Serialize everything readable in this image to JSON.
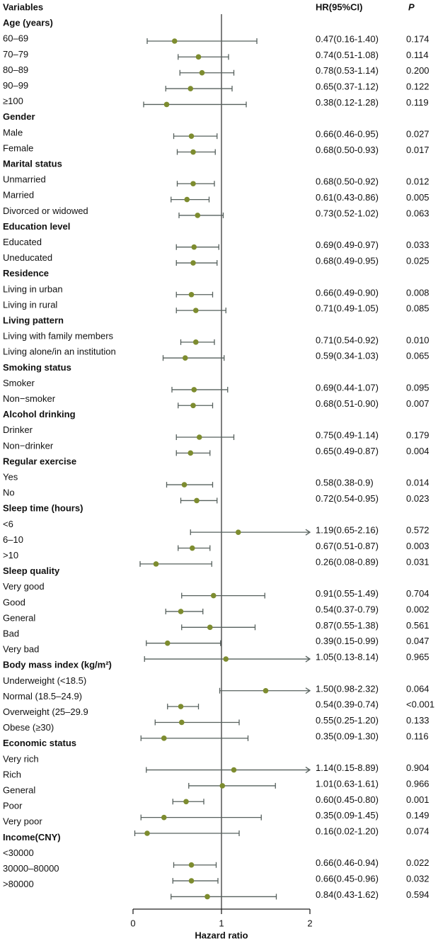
{
  "chart_data": {
    "type": "scatter",
    "title": "",
    "header": {
      "variables": "Variables",
      "hr": "HR(95%CI)",
      "p": "P"
    },
    "xlabel": "Hazard ratio",
    "ylabel": "",
    "xlim": [
      0,
      2
    ],
    "xticks": [
      0,
      1,
      2
    ],
    "reference_line": 1,
    "colors": {
      "point": "#7d8c2f",
      "line": "#56605d",
      "reference": "#3a3a3a"
    },
    "groups": [
      {
        "label": "Age (years)",
        "items": [
          {
            "label": "60–69",
            "hr": 0.47,
            "lower": 0.16,
            "upper": 1.4,
            "ci_text": "0.47(0.16-1.40)",
            "p": "0.174"
          },
          {
            "label": "70–79",
            "hr": 0.74,
            "lower": 0.51,
            "upper": 1.08,
            "ci_text": "0.74(0.51-1.08)",
            "p": "0.114"
          },
          {
            "label": "80–89",
            "hr": 0.78,
            "lower": 0.53,
            "upper": 1.14,
            "ci_text": "0.78(0.53-1.14)",
            "p": "0.200"
          },
          {
            "label": "90–99",
            "hr": 0.65,
            "lower": 0.37,
            "upper": 1.12,
            "ci_text": "0.65(0.37-1.12)",
            "p": "0.122"
          },
          {
            "label": "≥100",
            "hr": 0.38,
            "lower": 0.12,
            "upper": 1.28,
            "ci_text": "0.38(0.12-1.28)",
            "p": "0.119"
          }
        ]
      },
      {
        "label": "Gender",
        "items": [
          {
            "label": "Male",
            "hr": 0.66,
            "lower": 0.46,
            "upper": 0.95,
            "ci_text": "0.66(0.46-0.95)",
            "p": "0.027"
          },
          {
            "label": "Female",
            "hr": 0.68,
            "lower": 0.5,
            "upper": 0.93,
            "ci_text": "0.68(0.50-0.93)",
            "p": "0.017"
          }
        ]
      },
      {
        "label": "Marital status",
        "items": [
          {
            "label": "Unmarried",
            "hr": 0.68,
            "lower": 0.5,
            "upper": 0.92,
            "ci_text": "0.68(0.50-0.92)",
            "p": "0.012"
          },
          {
            "label": "Married",
            "hr": 0.61,
            "lower": 0.43,
            "upper": 0.86,
            "ci_text": "0.61(0.43-0.86)",
            "p": "0.005"
          },
          {
            "label": "Divorced or widowed",
            "hr": 0.73,
            "lower": 0.52,
            "upper": 1.02,
            "ci_text": "0.73(0.52-1.02)",
            "p": "0.063"
          }
        ]
      },
      {
        "label": "Education level",
        "items": [
          {
            "label": "Educated",
            "hr": 0.69,
            "lower": 0.49,
            "upper": 0.97,
            "ci_text": "0.69(0.49-0.97)",
            "p": "0.033"
          },
          {
            "label": "Uneducated",
            "hr": 0.68,
            "lower": 0.49,
            "upper": 0.95,
            "ci_text": "0.68(0.49-0.95)",
            "p": "0.025"
          }
        ]
      },
      {
        "label": "Residence",
        "items": [
          {
            "label": "Living in urban",
            "hr": 0.66,
            "lower": 0.49,
            "upper": 0.9,
            "ci_text": "0.66(0.49-0.90)",
            "p": "0.008"
          },
          {
            "label": "Living in rural",
            "hr": 0.71,
            "lower": 0.49,
            "upper": 1.05,
            "ci_text": "0.71(0.49-1.05)",
            "p": "0.085"
          }
        ]
      },
      {
        "label": "Living pattern",
        "items": [
          {
            "label": "Living with family members",
            "hr": 0.71,
            "lower": 0.54,
            "upper": 0.92,
            "ci_text": "0.71(0.54-0.92)",
            "p": "0.010"
          },
          {
            "label": "Living alone/in an institution",
            "hr": 0.59,
            "lower": 0.34,
            "upper": 1.03,
            "ci_text": "0.59(0.34-1.03)",
            "p": "0.065"
          }
        ]
      },
      {
        "label": "Smoking status",
        "items": [
          {
            "label": "Smoker",
            "hr": 0.69,
            "lower": 0.44,
            "upper": 1.07,
            "ci_text": "0.69(0.44-1.07)",
            "p": "0.095"
          },
          {
            "label": "Non−smoker",
            "hr": 0.68,
            "lower": 0.51,
            "upper": 0.9,
            "ci_text": "0.68(0.51-0.90)",
            "p": "0.007"
          }
        ]
      },
      {
        "label": "Alcohol drinking",
        "items": [
          {
            "label": "Drinker",
            "hr": 0.75,
            "lower": 0.49,
            "upper": 1.14,
            "ci_text": "0.75(0.49-1.14)",
            "p": "0.179"
          },
          {
            "label": "Non−drinker",
            "hr": 0.65,
            "lower": 0.49,
            "upper": 0.87,
            "ci_text": "0.65(0.49-0.87)",
            "p": "0.004"
          }
        ]
      },
      {
        "label": "Regular exercise",
        "items": [
          {
            "label": "Yes",
            "hr": 0.58,
            "lower": 0.38,
            "upper": 0.9,
            "ci_text": "0.58(0.38-0.9)",
            "p": "0.014"
          },
          {
            "label": "No",
            "hr": 0.72,
            "lower": 0.54,
            "upper": 0.95,
            "ci_text": "0.72(0.54-0.95)",
            "p": "0.023"
          }
        ]
      },
      {
        "label": "Sleep time (hours)",
        "items": [
          {
            "label": "<6",
            "hr": 1.19,
            "lower": 0.65,
            "upper": 2.16,
            "ci_text": "1.19(0.65-2.16)",
            "p": "0.572"
          },
          {
            "label": "6–10",
            "hr": 0.67,
            "lower": 0.51,
            "upper": 0.87,
            "ci_text": "0.67(0.51-0.87)",
            "p": "0.003"
          },
          {
            "label": ">10",
            "hr": 0.26,
            "lower": 0.08,
            "upper": 0.89,
            "ci_text": "0.26(0.08-0.89)",
            "p": "0.031"
          }
        ]
      },
      {
        "label": "Sleep quality",
        "items": [
          {
            "label": "Very good",
            "hr": 0.91,
            "lower": 0.55,
            "upper": 1.49,
            "ci_text": "0.91(0.55-1.49)",
            "p": "0.704"
          },
          {
            "label": "Good",
            "hr": 0.54,
            "lower": 0.37,
            "upper": 0.79,
            "ci_text": "0.54(0.37-0.79)",
            "p": "0.002"
          },
          {
            "label": "General",
            "hr": 0.87,
            "lower": 0.55,
            "upper": 1.38,
            "ci_text": "0.87(0.55-1.38)",
            "p": "0.561"
          },
          {
            "label": "Bad",
            "hr": 0.39,
            "lower": 0.15,
            "upper": 0.99,
            "ci_text": "0.39(0.15-0.99)",
            "p": "0.047"
          },
          {
            "label": "Very bad",
            "hr": 1.05,
            "lower": 0.13,
            "upper": 8.14,
            "ci_text": "1.05(0.13-8.14)",
            "p": "0.965"
          }
        ]
      },
      {
        "label": "Body mass index (kg/m²)",
        "items": [
          {
            "label": "Underweight (<18.5)",
            "hr": 1.5,
            "lower": 0.98,
            "upper": 2.32,
            "ci_text": "1.50(0.98-2.32)",
            "p": "0.064"
          },
          {
            "label": "Normal (18.5–24.9)",
            "hr": 0.54,
            "lower": 0.39,
            "upper": 0.74,
            "ci_text": "0.54(0.39-0.74)",
            "p": "<0.001"
          },
          {
            "label": "Overweight (25–29.9",
            "hr": 0.55,
            "lower": 0.25,
            "upper": 1.2,
            "ci_text": "0.55(0.25-1.20)",
            "p": "0.133"
          },
          {
            "label": "Obese (≥30)",
            "hr": 0.35,
            "lower": 0.09,
            "upper": 1.3,
            "ci_text": "0.35(0.09-1.30)",
            "p": "0.116"
          }
        ]
      },
      {
        "label": "Economic status",
        "items": [
          {
            "label": "Very rich",
            "hr": 1.14,
            "lower": 0.15,
            "upper": 8.89,
            "ci_text": "1.14(0.15-8.89)",
            "p": "0.904"
          },
          {
            "label": "Rich",
            "hr": 1.01,
            "lower": 0.63,
            "upper": 1.61,
            "ci_text": "1.01(0.63-1.61)",
            "p": "0.966"
          },
          {
            "label": "General",
            "hr": 0.6,
            "lower": 0.45,
            "upper": 0.8,
            "ci_text": "0.60(0.45-0.80)",
            "p": "0.001"
          },
          {
            "label": "Poor",
            "hr": 0.35,
            "lower": 0.09,
            "upper": 1.45,
            "ci_text": "0.35(0.09-1.45)",
            "p": "0.149"
          },
          {
            "label": "Very poor",
            "hr": 0.16,
            "lower": 0.02,
            "upper": 1.2,
            "ci_text": "0.16(0.02-1.20)",
            "p": "0.074"
          }
        ]
      },
      {
        "label": "Income(CNY)",
        "items": [
          {
            "label": "<30000",
            "hr": 0.66,
            "lower": 0.46,
            "upper": 0.94,
            "ci_text": "0.66(0.46-0.94)",
            "p": "0.022"
          },
          {
            "label": "30000–80000",
            "hr": 0.66,
            "lower": 0.45,
            "upper": 0.96,
            "ci_text": "0.66(0.45-0.96)",
            "p": "0.032"
          },
          {
            "label": ">80000",
            "hr": 0.84,
            "lower": 0.43,
            "upper": 1.62,
            "ci_text": "0.84(0.43-1.62)",
            "p": "0.594"
          }
        ]
      }
    ]
  }
}
